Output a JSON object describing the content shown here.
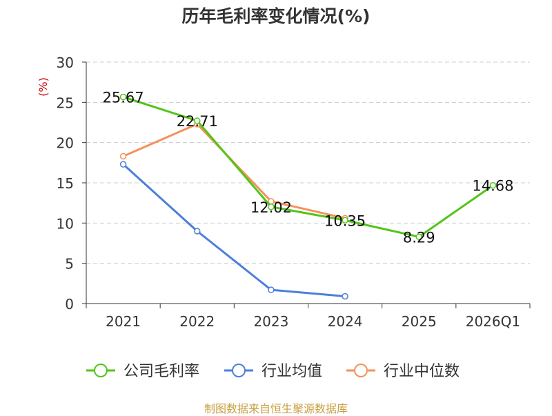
{
  "chart_data": {
    "type": "line",
    "title": "历年毛利率变化情况(%)",
    "ylabel": "(%)",
    "xlabel": "",
    "categories": [
      "2021",
      "2022",
      "2023",
      "2024",
      "2025",
      "2026Q1"
    ],
    "yticks": [
      0,
      5,
      10,
      15,
      20,
      25,
      30
    ],
    "ylim": [
      0,
      30
    ],
    "grid": true,
    "legend_position": "bottom",
    "series": [
      {
        "name": "公司毛利率",
        "color": "#52c41a",
        "values": [
          25.67,
          22.71,
          12.02,
          10.35,
          8.29,
          14.68
        ],
        "labels": [
          "25.67",
          "22.71",
          "12.02",
          "10.35",
          "8.29",
          "14.68"
        ],
        "show_labels": true
      },
      {
        "name": "行业均值",
        "color": "#4a7fdc",
        "values": [
          17.3,
          9.0,
          1.7,
          0.9,
          null,
          null
        ],
        "show_labels": false
      },
      {
        "name": "行业中位数",
        "color": "#f5915a",
        "values": [
          18.3,
          22.3,
          12.7,
          10.6,
          null,
          null
        ],
        "show_labels": false
      }
    ]
  },
  "footer": {
    "source": "制图数据来自恒生聚源数据库"
  }
}
